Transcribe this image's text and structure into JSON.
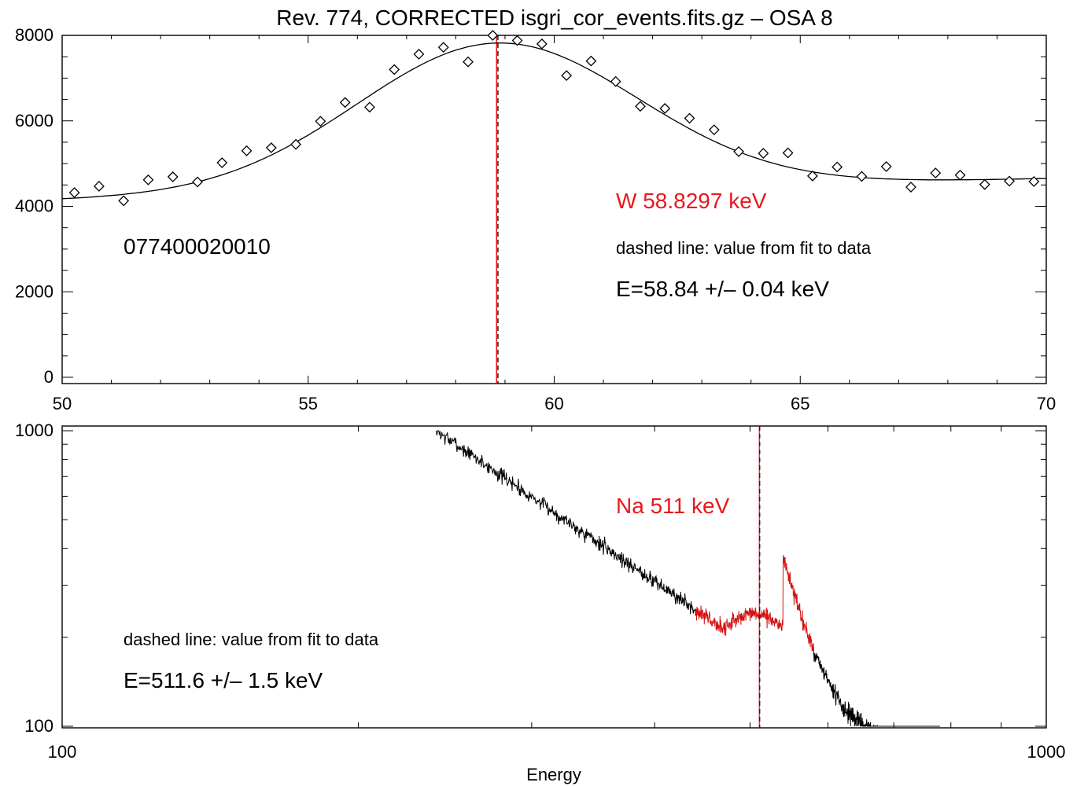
{
  "chart_data": [
    {
      "type": "scatter",
      "title": "Rev. 774, CORRECTED isgri_cor_events.fits.gz – OSA 8",
      "xlim": [
        50,
        70
      ],
      "ylim": [
        0,
        8000
      ],
      "x_ticks": [
        "50",
        "55",
        "60",
        "65",
        "70"
      ],
      "y_ticks": [
        "0",
        "2000",
        "4000",
        "6000",
        "8000"
      ],
      "grid": false,
      "series": [
        {
          "kind": "points",
          "marker": "diamond",
          "x": [
            50.25,
            50.75,
            51.25,
            51.75,
            52.25,
            52.75,
            53.25,
            53.75,
            54.25,
            54.75,
            55.25,
            55.75,
            56.25,
            56.75,
            57.25,
            57.75,
            58.25,
            58.75,
            59.25,
            59.75,
            60.25,
            60.75,
            61.25,
            61.75,
            62.25,
            62.75,
            63.25,
            63.75,
            64.25,
            64.75,
            65.25,
            65.75,
            66.25,
            66.75,
            67.25,
            67.75,
            68.25,
            68.75,
            69.25,
            69.75
          ],
          "y": [
            4320,
            4470,
            4130,
            4620,
            4690,
            4570,
            5020,
            5300,
            5370,
            5450,
            5990,
            6430,
            6320,
            7200,
            7560,
            7720,
            7380,
            8000,
            7880,
            7800,
            7060,
            7400,
            6920,
            6340,
            6290,
            6060,
            5790,
            5280,
            5240,
            5250,
            4710,
            4920,
            4700,
            4930,
            4450,
            4780,
            4730,
            4510,
            4590,
            4580
          ]
        },
        {
          "kind": "fit",
          "model": "gaussian",
          "peak": 58.84,
          "amplitude": 3450,
          "sigma": 2.85,
          "baseline_start": 4150,
          "baseline_end": 4650
        }
      ],
      "markers": [
        {
          "x": 58.8297,
          "color": "#e8181c",
          "style": "solid"
        },
        {
          "x": 58.84,
          "color": "#000000",
          "style": "dashed"
        }
      ],
      "annotations": {
        "obs_id": "077400020010",
        "line_name": "W 58.8297 keV",
        "note": "dashed line: value from fit to data",
        "result": "E=58.84 +/– 0.04 keV"
      }
    },
    {
      "type": "line",
      "xlabel": "Energy",
      "xscale": "log",
      "yscale": "log",
      "xlim": [
        100,
        1000
      ],
      "ylim": [
        100,
        1000
      ],
      "x_ticks": [
        "100",
        "1000"
      ],
      "y_ticks": [
        "100",
        "1000"
      ],
      "grid": false,
      "series": [
        {
          "kind": "spectrum",
          "color": "#000000",
          "x_range": [
            240,
            780
          ],
          "power_law_index": 2.3,
          "value_at_240": 1000,
          "noise": 0.055
        },
        {
          "kind": "fit-region",
          "color": "#d41414",
          "x_range": [
            440,
            580
          ],
          "hump_center": 505,
          "hump_level": 240,
          "noise": 0.06
        }
      ],
      "markers": [
        {
          "x": 511,
          "color": "#e8181c",
          "style": "solid"
        },
        {
          "x": 511.6,
          "color": "#000000",
          "style": "dashed"
        }
      ],
      "annotations": {
        "line_name": "Na 511 keV",
        "note": "dashed line: value from fit to data",
        "result": "E=511.6 +/– 1.5 keV"
      }
    }
  ]
}
